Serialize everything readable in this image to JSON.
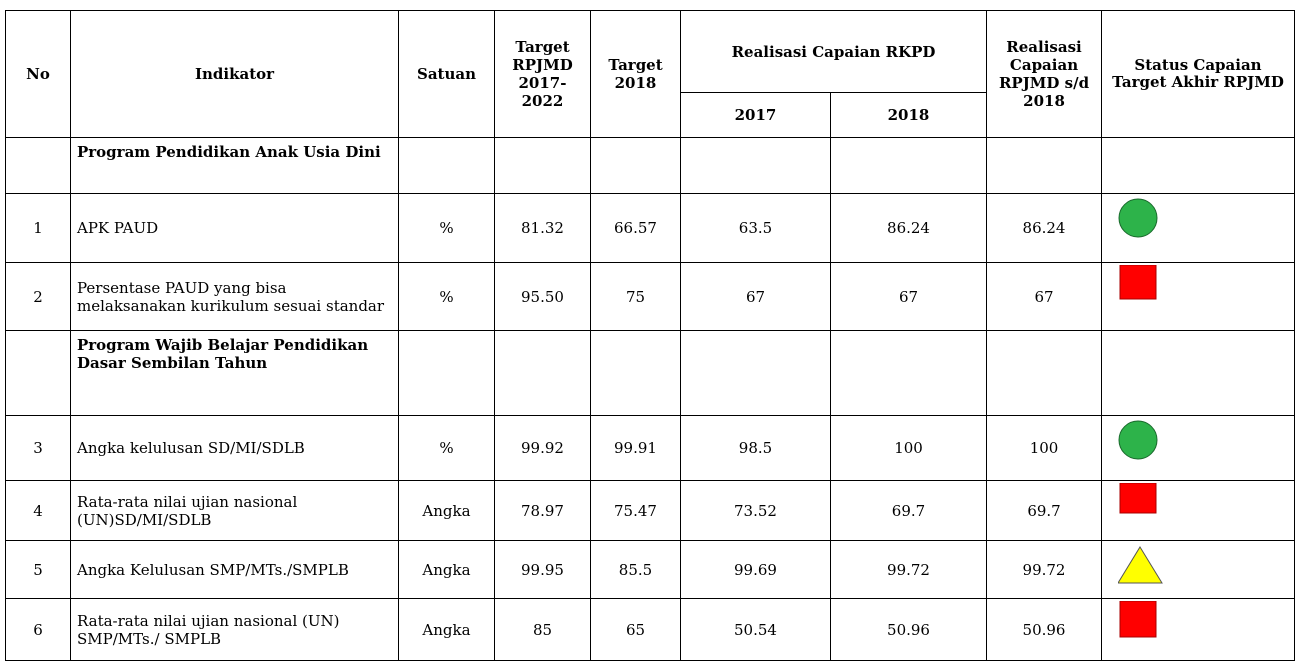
{
  "table": {
    "header": {
      "no": "No",
      "indikator": "Indikator",
      "satuan": "Satuan",
      "target_rpjmd": "Target RPJMD 2017-2022",
      "target_2018": "Target 2018",
      "realisasi_rkpd": "Realisasi Capaian RKPD",
      "year_2017": "2017",
      "year_2018": "2018",
      "realisasi_sd": "Realisasi Capaian RPJMD s/d 2018",
      "status": "Status Capaian Target Akhir RPJMD"
    },
    "rows": [
      {
        "program": "Program Pendidikan Anak Usia Dini"
      },
      {
        "no": "1",
        "indikator": "APK  PAUD",
        "satuan": "%",
        "target_rpjmd": "81.32",
        "target_2018": "66.57",
        "real_2017": "63.5",
        "real_2018": "86.24",
        "real_sd": "86.24"
      },
      {
        "no": "2",
        "indikator": "Persentase PAUD yang bisa melaksanakan kurikulum sesuai standar",
        "satuan": "%",
        "target_rpjmd": "95.50",
        "target_2018": "75",
        "real_2017": "67",
        "real_2018": "67",
        "real_sd": "67"
      },
      {
        "program": "Program Wajib Belajar Pendidikan Dasar Sembilan Tahun"
      },
      {
        "no": "3",
        "indikator": "Angka kelulusan SD/MI/SDLB",
        "satuan": "%",
        "target_rpjmd": "99.92",
        "target_2018": "99.91",
        "real_2017": "98.5",
        "real_2018": "100",
        "real_sd": "100"
      },
      {
        "no": "4",
        "indikator": "Rata-rata nilai ujian nasional (UN)SD/MI/SDLB",
        "satuan": "Angka",
        "target_rpjmd": "78.97",
        "target_2018": "75.47",
        "real_2017": "73.52",
        "real_2018": "69.7",
        "real_sd": "69.7"
      },
      {
        "no": "5",
        "indikator": "Angka Kelulusan SMP/MTs./SMPLB",
        "satuan": "Angka",
        "target_rpjmd": "99.95",
        "target_2018": "85.5",
        "real_2017": "99.69",
        "real_2018": "99.72",
        "real_sd": "99.72"
      },
      {
        "no": "6",
        "indikator": "Rata-rata nilai ujian nasional (UN) SMP/MTs./ SMPLB",
        "satuan": "Angka",
        "target_rpjmd": "85",
        "target_2018": "65",
        "real_2017": "50.54",
        "real_2018": "50.96",
        "real_sd": "50.96"
      }
    ]
  }
}
